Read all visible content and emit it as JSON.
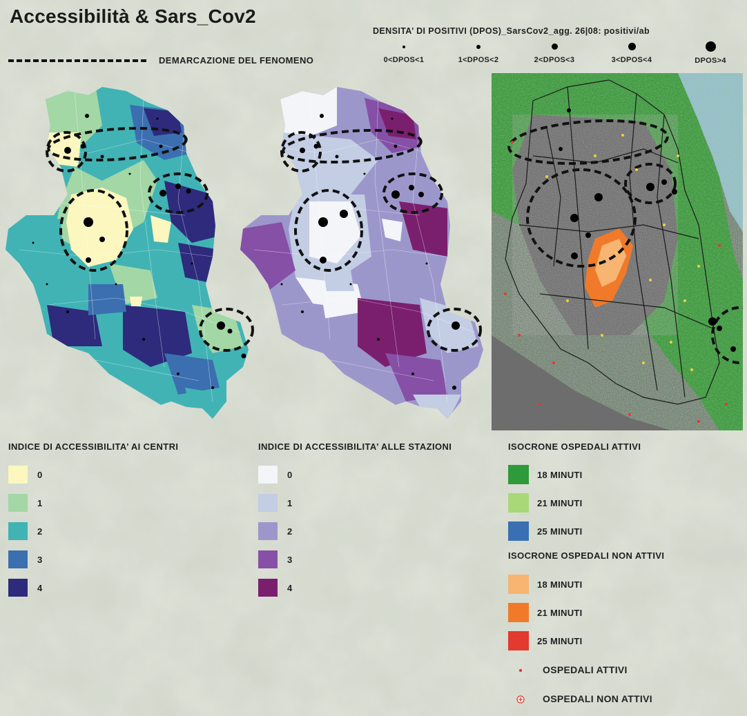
{
  "title": "Accessibilità & Sars_Cov2",
  "density": {
    "title": "DENSITA’ DI POSITIVI (DPOS)_SarsCov2_agg. 26|08: positivi/ab",
    "classes": [
      {
        "label": "0<DPOS<1"
      },
      {
        "label": "1<DPOS<2"
      },
      {
        "label": "2<DPOS<3"
      },
      {
        "label": "3<DPOS<4"
      },
      {
        "label": "DPOS>4"
      }
    ]
  },
  "demarcation": {
    "label": "DEMARCAZIONE DEL FENOMENO"
  },
  "legend_centri": {
    "title": "INDICE DI ACCESSIBILITA’ AI CENTRI",
    "items": [
      {
        "label": "0",
        "color": "#fbf7bf"
      },
      {
        "label": "1",
        "color": "#a3d7a6"
      },
      {
        "label": "2",
        "color": "#41b3b5"
      },
      {
        "label": "3",
        "color": "#3b6fb0"
      },
      {
        "label": "4",
        "color": "#2e2a7c"
      }
    ]
  },
  "legend_stazioni": {
    "title": "INDICE DI ACCESSIBILITA’ ALLE STAZIONI",
    "items": [
      {
        "label": "0",
        "color": "#f3f5f8"
      },
      {
        "label": "1",
        "color": "#c3cde4"
      },
      {
        "label": "2",
        "color": "#9c97cb"
      },
      {
        "label": "3",
        "color": "#8650a6"
      },
      {
        "label": "4",
        "color": "#7a1f6e"
      }
    ]
  },
  "legend_ospedali_attivi": {
    "title": "ISOCRONE OSPEDALI ATTIVI",
    "items": [
      {
        "label": "18 MINUTI",
        "color": "#2f9a3a"
      },
      {
        "label": "21 MINUTI",
        "color": "#a8d877"
      },
      {
        "label": "25 MINUTI",
        "color": "#3a6fb3"
      }
    ]
  },
  "legend_ospedali_non_attivi": {
    "title": "ISOCRONE OSPEDALI NON ATTIVI",
    "items": [
      {
        "label": "18 MINUTI",
        "color": "#f7b571"
      },
      {
        "label": "21 MINUTI",
        "color": "#f07a2a"
      },
      {
        "label": "25 MINUTI",
        "color": "#e23a2e"
      }
    ]
  },
  "ospedali": {
    "attivi_label": "OSPEDALI ATTIVI",
    "non_attivi_label": "OSPEDALI NON ATTIVI",
    "attivi_color": "#e23a2e",
    "non_attivi_color": "#e23a2e"
  }
}
